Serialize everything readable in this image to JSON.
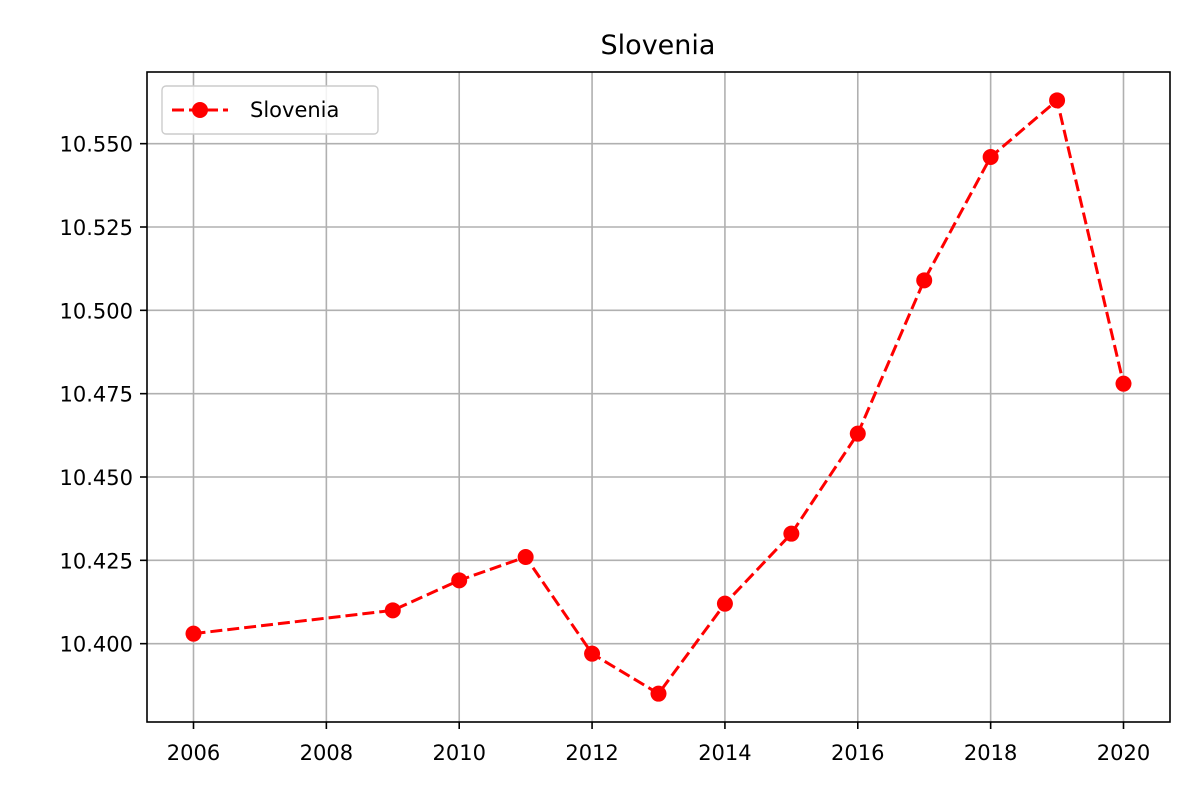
{
  "chart_data": {
    "type": "line",
    "title": "Slovenia",
    "xlabel": "",
    "ylabel": "",
    "x": [
      2006,
      2009,
      2010,
      2011,
      2012,
      2013,
      2014,
      2015,
      2016,
      2017,
      2018,
      2019,
      2020
    ],
    "series": [
      {
        "name": "Slovenia",
        "values": [
          10.403,
          10.41,
          10.419,
          10.426,
          10.397,
          10.385,
          10.412,
          10.433,
          10.463,
          10.509,
          10.546,
          10.563,
          10.478
        ],
        "color": "#ff0000",
        "line_style": "dashed",
        "marker": "circle"
      }
    ],
    "xlim": [
      2005.3,
      2020.7
    ],
    "ylim": [
      10.3765,
      10.5715
    ],
    "x_ticks": [
      2006,
      2008,
      2010,
      2012,
      2014,
      2016,
      2018,
      2020
    ],
    "y_ticks": [
      10.4,
      10.425,
      10.45,
      10.475,
      10.5,
      10.525,
      10.55
    ],
    "y_tick_labels": [
      "10.400",
      "10.425",
      "10.450",
      "10.475",
      "10.500",
      "10.525",
      "10.550"
    ],
    "grid": true,
    "legend_position": "top-left"
  }
}
